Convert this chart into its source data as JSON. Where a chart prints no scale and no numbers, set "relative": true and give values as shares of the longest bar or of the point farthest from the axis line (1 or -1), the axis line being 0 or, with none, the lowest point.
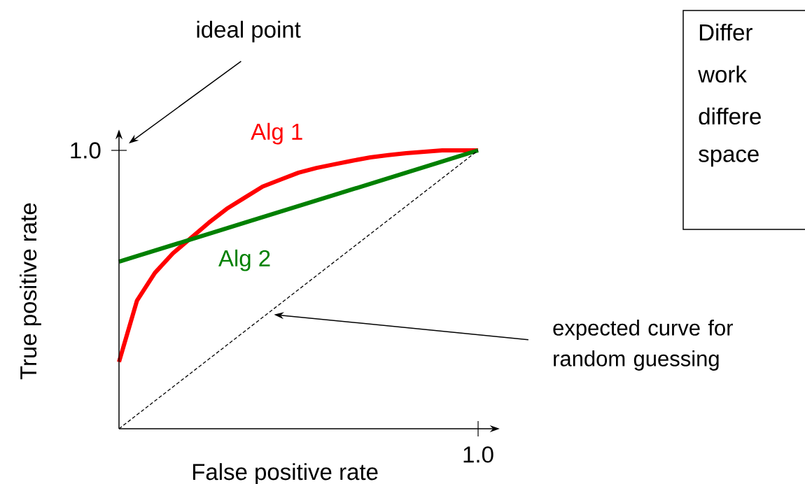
{
  "chart_data": {
    "type": "line",
    "relative": true,
    "xlabel": "False positive rate",
    "ylabel": "True positive rate",
    "categories": [
      null,
      null,
      null,
      null,
      null,
      null,
      null,
      null,
      null,
      null,
      null,
      null,
      null,
      null,
      null,
      null,
      null,
      null,
      null,
      null,
      null
    ],
    "series": [
      {
        "name": "Alg 1",
        "color": "#ff0000",
        "values": [
          0.24,
          0.46,
          0.56,
          0.63,
          0.685,
          0.74,
          0.79,
          0.83,
          0.87,
          0.895,
          0.92,
          0.937,
          0.95,
          0.963,
          0.975,
          0.983,
          0.99,
          0.995,
          1.0,
          1.0,
          1.0
        ]
      },
      {
        "name": "Alg 2",
        "color": "#008000",
        "values": [
          0.6,
          0.62,
          0.64,
          0.66,
          0.68,
          0.7,
          0.72,
          0.74,
          0.76,
          0.78,
          0.8,
          0.82,
          0.84,
          0.86,
          0.88,
          0.9,
          0.92,
          0.94,
          0.96,
          0.98,
          1.0
        ]
      },
      {
        "color": "#000000",
        "line_style": "dashed",
        "values": [
          0,
          0.05,
          0.1,
          0.15,
          0.2,
          0.25,
          0.3,
          0.35,
          0.4,
          0.45,
          0.5,
          0.55,
          0.6,
          0.65,
          0.7,
          0.75,
          0.8,
          0.85,
          0.9,
          0.95,
          1.0
        ]
      }
    ],
    "annotations": [
      "ideal point",
      "expected curve for random guessing",
      "1.0",
      "1.0",
      "Differ",
      "work",
      "differe",
      "space"
    ]
  }
}
